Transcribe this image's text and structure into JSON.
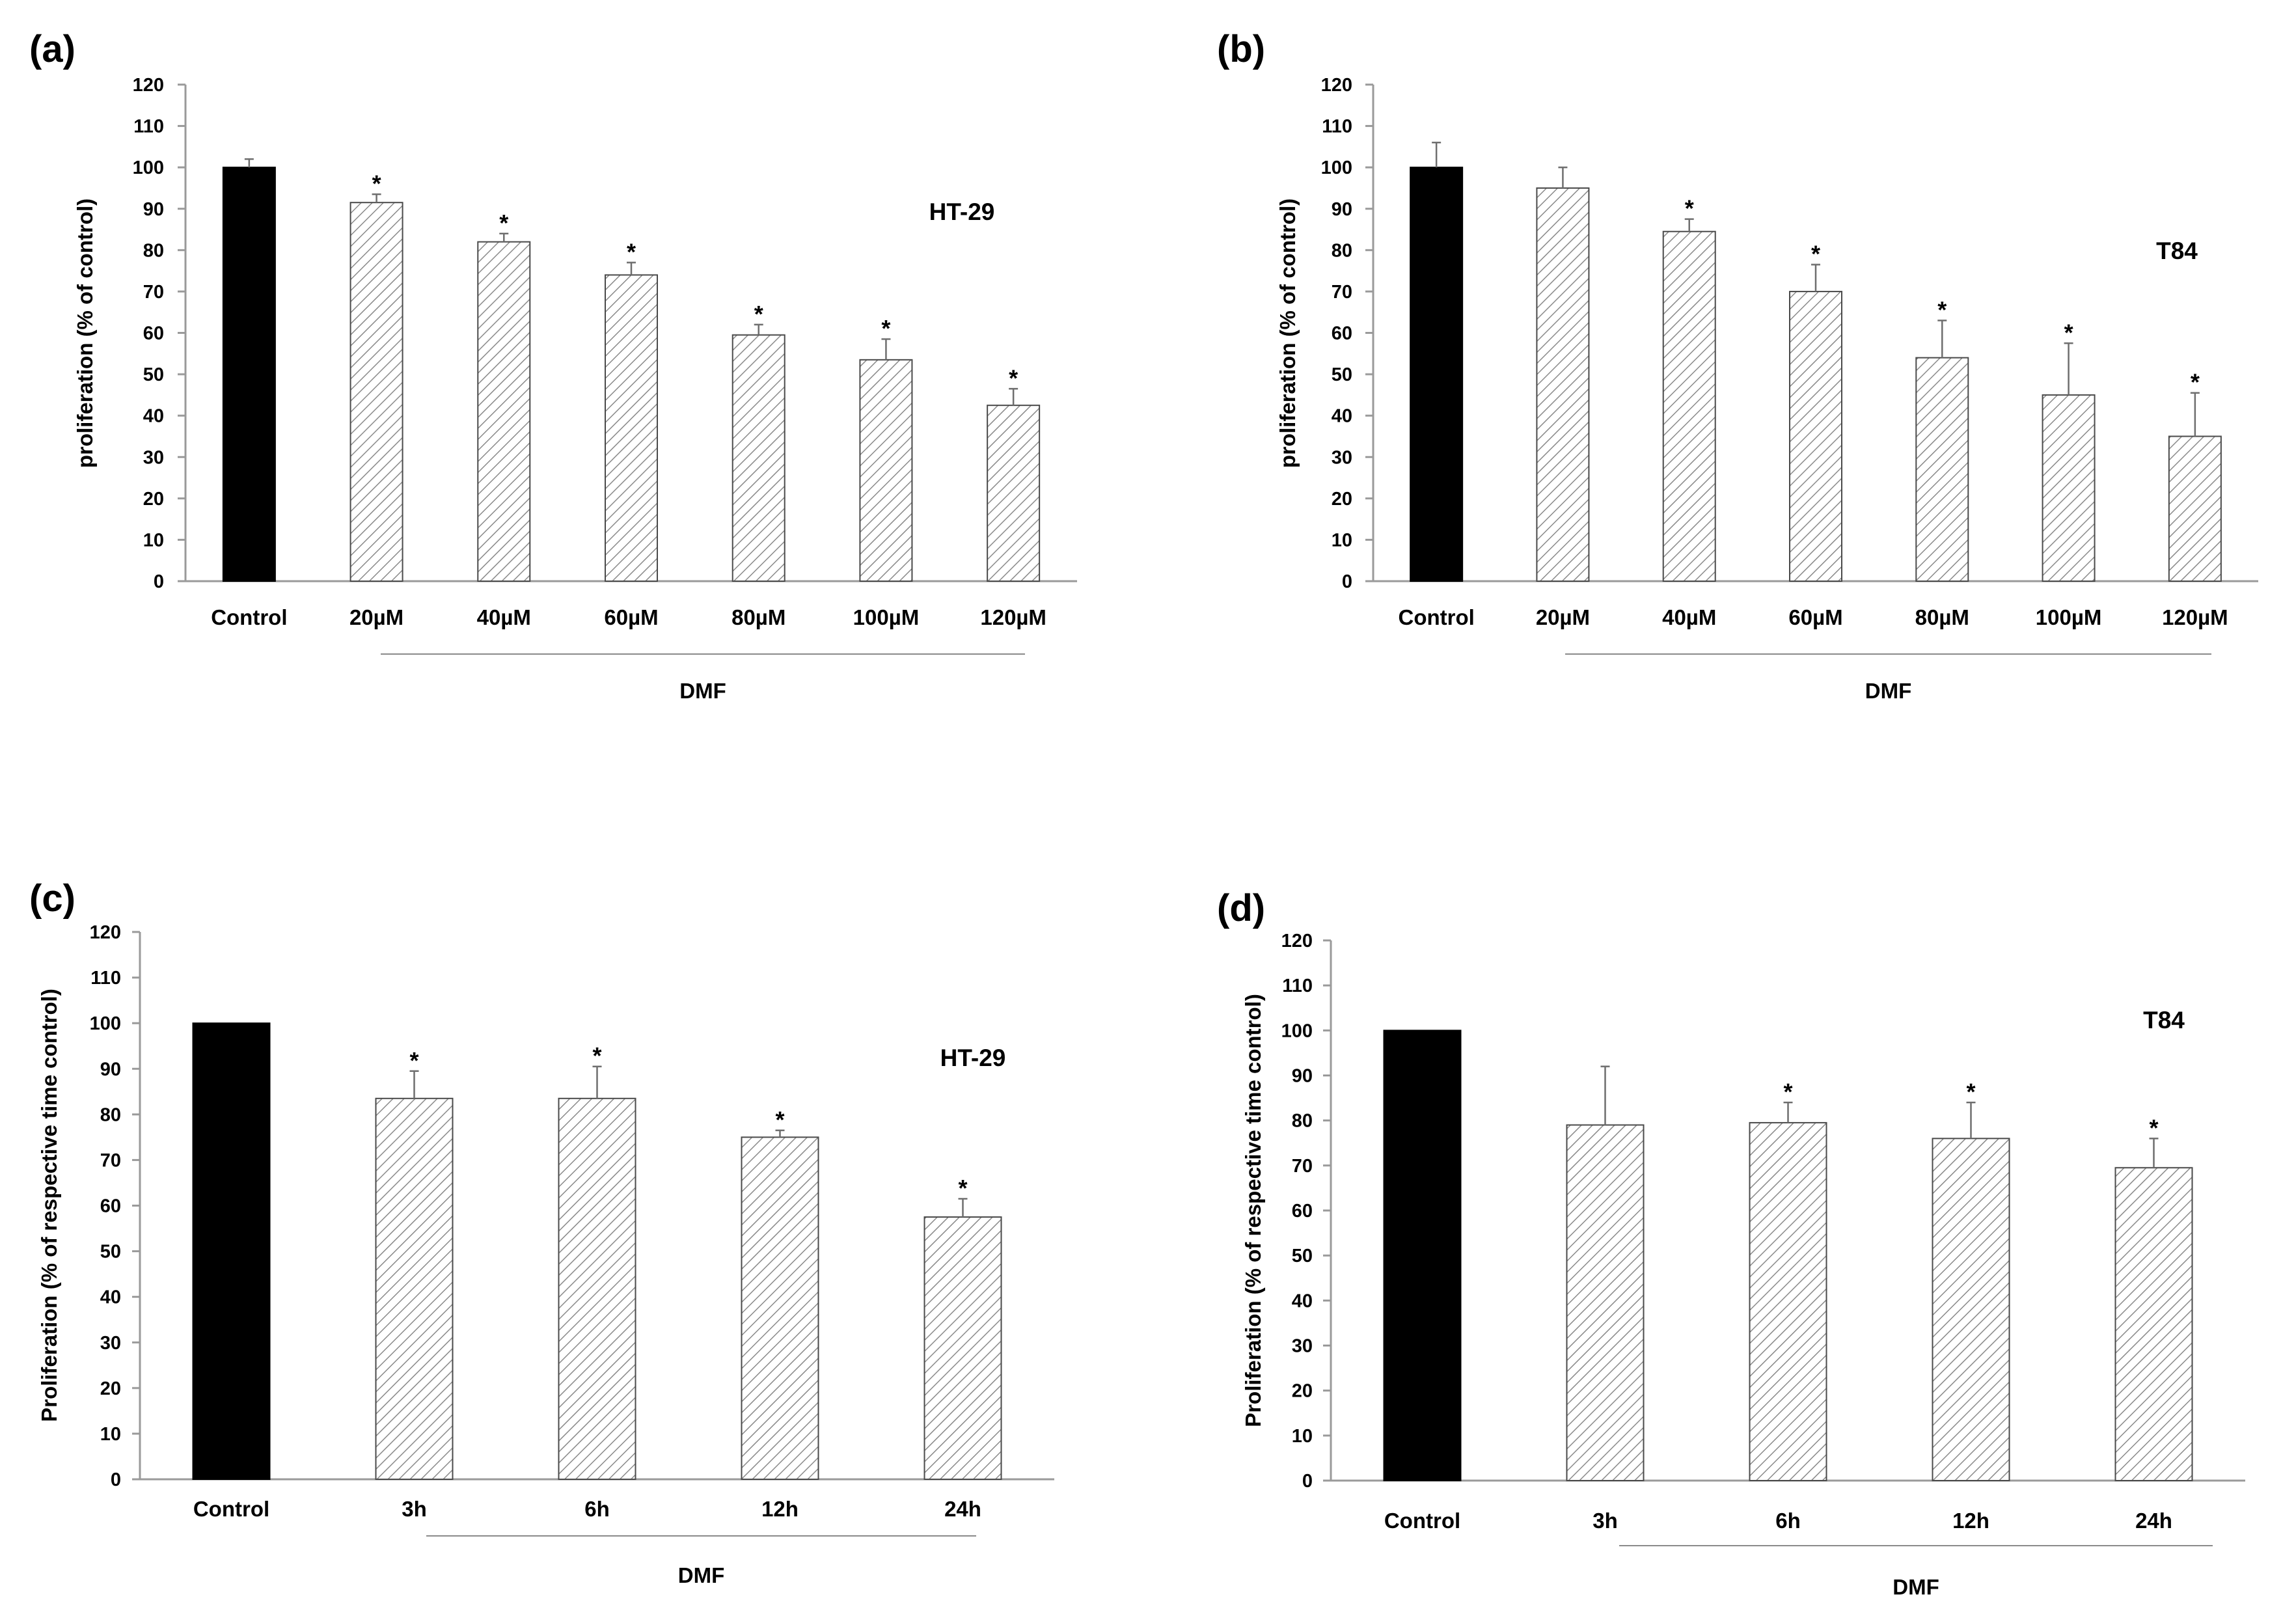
{
  "colors": {
    "control": "#000000",
    "treated_fill": "#ffffff",
    "hatch": "#8a8a8a",
    "axis": "#9a9a9a",
    "text": "#000000"
  },
  "chart_data": [
    {
      "panel": "(a)",
      "type": "bar",
      "categories": [
        "Control",
        "20µM",
        "40µM",
        "60µM",
        "80µM",
        "100µM",
        "120µM"
      ],
      "values": [
        100,
        91.5,
        82,
        74,
        59.5,
        53.5,
        42.5
      ],
      "errors": [
        2,
        2,
        2,
        3,
        2.5,
        5,
        4
      ],
      "significant": [
        false,
        true,
        true,
        true,
        true,
        true,
        true
      ],
      "ylabel": "proliferation (% of control)",
      "cell_line": "HT-29",
      "group_label": "DMF",
      "ylim": [
        0,
        120
      ],
      "yticks": [
        0,
        10,
        20,
        30,
        40,
        50,
        60,
        70,
        80,
        90,
        100,
        110,
        120
      ],
      "star": "*"
    },
    {
      "panel": "(b)",
      "type": "bar",
      "categories": [
        "Control",
        "20µM",
        "40µM",
        "60µM",
        "80µM",
        "100µM",
        "120µM"
      ],
      "values": [
        100,
        95,
        84.5,
        70,
        54,
        45,
        35
      ],
      "errors": [
        6,
        5,
        3,
        6.5,
        9,
        12.5,
        10.5
      ],
      "significant": [
        false,
        false,
        true,
        true,
        true,
        true,
        true
      ],
      "ylabel": "proliferation (% of control)",
      "cell_line": "T84",
      "group_label": "DMF",
      "ylim": [
        0,
        120
      ],
      "yticks": [
        0,
        10,
        20,
        30,
        40,
        50,
        60,
        70,
        80,
        90,
        100,
        110,
        120
      ],
      "star": "*"
    },
    {
      "panel": "(c)",
      "type": "bar",
      "categories": [
        "Control",
        "3h",
        "6h",
        "12h",
        "24h"
      ],
      "values": [
        100,
        83.5,
        83.5,
        75,
        57.5
      ],
      "errors": [
        0,
        6,
        7,
        1.5,
        4
      ],
      "significant": [
        false,
        true,
        true,
        true,
        true
      ],
      "ylabel": "Proliferation (% of respective time control)",
      "cell_line": "HT-29",
      "group_label": "DMF",
      "ylim": [
        0,
        120
      ],
      "yticks": [
        0,
        10,
        20,
        30,
        40,
        50,
        60,
        70,
        80,
        90,
        100,
        110,
        120
      ],
      "star": "*"
    },
    {
      "panel": "(d)",
      "type": "bar",
      "categories": [
        "Control",
        "3h",
        "6h",
        "12h",
        "24h"
      ],
      "values": [
        100,
        79,
        79.5,
        76,
        69.5
      ],
      "errors": [
        0,
        13,
        4.5,
        8,
        6.5
      ],
      "significant": [
        false,
        false,
        true,
        true,
        true
      ],
      "ylabel": "Proliferation (% of respective time control)",
      "cell_line": "T84",
      "group_label": "DMF",
      "ylim": [
        0,
        120
      ],
      "yticks": [
        0,
        10,
        20,
        30,
        40,
        50,
        60,
        70,
        80,
        90,
        100,
        110,
        120
      ],
      "star": "*"
    }
  ]
}
